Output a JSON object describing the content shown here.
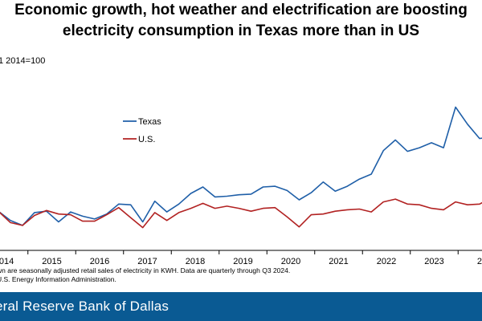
{
  "title_lines": [
    "Economic growth, hot weather and electrification are boosting",
    "electricity consumption in Texas more than in US"
  ],
  "subtitle": "1 2014=100",
  "notes": [
    "wn are seasonally adjusted retail sales of electricity in KWH. Data are quarterly through Q3 2024.",
    "U.S. Energy Information Administration."
  ],
  "footer": "eral Reserve Bank of Dallas",
  "colors": {
    "texas": "#1f5fa8",
    "us": "#b22222",
    "footer": "#0a5a93"
  },
  "chart_data": {
    "type": "line",
    "title": "Economic growth, hot weather and electrification are boosting electricity consumption in Texas more than in US",
    "x_ticks": [
      "2014",
      "2015",
      "2016",
      "2017",
      "2018",
      "2019",
      "2020",
      "2021",
      "2022",
      "2023",
      "20"
    ],
    "x_range": [
      2014.0,
      2024.25
    ],
    "y_range": [
      93.6,
      119.5
    ],
    "grid": false,
    "legend": "top-left",
    "series": [
      {
        "name": "Texas",
        "color": "#1f5fa8",
        "x": [
          2014.0,
          2014.25,
          2014.5,
          2014.75,
          2015.0,
          2015.25,
          2015.5,
          2015.75,
          2016.0,
          2016.25,
          2016.5,
          2016.75,
          2017.0,
          2017.25,
          2017.5,
          2017.75,
          2018.0,
          2018.25,
          2018.5,
          2018.75,
          2019.0,
          2019.25,
          2019.5,
          2019.75,
          2020.0,
          2020.25,
          2020.5,
          2020.75,
          2021.0,
          2021.25,
          2021.5,
          2021.75,
          2022.0,
          2022.25,
          2022.5,
          2022.75,
          2023.0,
          2023.25,
          2023.5,
          2023.75,
          2024.0,
          2024.25
        ],
        "values": [
          100.0,
          98.7,
          98.0,
          99.8,
          100.0,
          98.5,
          99.9,
          99.3,
          98.9,
          99.6,
          101.0,
          100.9,
          98.5,
          101.4,
          99.9,
          101.0,
          102.5,
          103.4,
          102.0,
          102.1,
          102.3,
          102.4,
          103.4,
          103.5,
          102.9,
          101.6,
          102.6,
          104.1,
          102.8,
          103.5,
          104.5,
          105.2,
          108.5,
          110.0,
          108.4,
          108.9,
          109.6,
          108.9,
          114.6,
          112.2,
          110.2,
          110.4
        ]
      },
      {
        "name": "U.S.",
        "color": "#b22222",
        "x": [
          2014.0,
          2014.25,
          2014.5,
          2014.75,
          2015.0,
          2015.25,
          2015.5,
          2015.75,
          2016.0,
          2016.25,
          2016.5,
          2016.75,
          2017.0,
          2017.25,
          2017.5,
          2017.75,
          2018.0,
          2018.25,
          2018.5,
          2018.75,
          2019.0,
          2019.25,
          2019.5,
          2019.75,
          2020.0,
          2020.25,
          2020.5,
          2020.75,
          2021.0,
          2021.25,
          2021.5,
          2021.75,
          2022.0,
          2022.25,
          2022.5,
          2022.75,
          2023.0,
          2023.25,
          2023.5,
          2023.75,
          2024.0,
          2024.25
        ],
        "values": [
          100.0,
          98.4,
          98.0,
          99.4,
          100.1,
          99.6,
          99.5,
          98.6,
          98.6,
          99.5,
          100.5,
          99.1,
          97.7,
          99.8,
          98.7,
          99.8,
          100.4,
          101.1,
          100.4,
          100.7,
          100.4,
          100.0,
          100.4,
          100.5,
          99.2,
          97.8,
          99.5,
          99.6,
          100.0,
          100.2,
          100.3,
          99.9,
          101.3,
          101.7,
          101.0,
          100.9,
          100.4,
          100.2,
          101.3,
          100.9,
          101.0,
          101.9
        ]
      }
    ]
  }
}
